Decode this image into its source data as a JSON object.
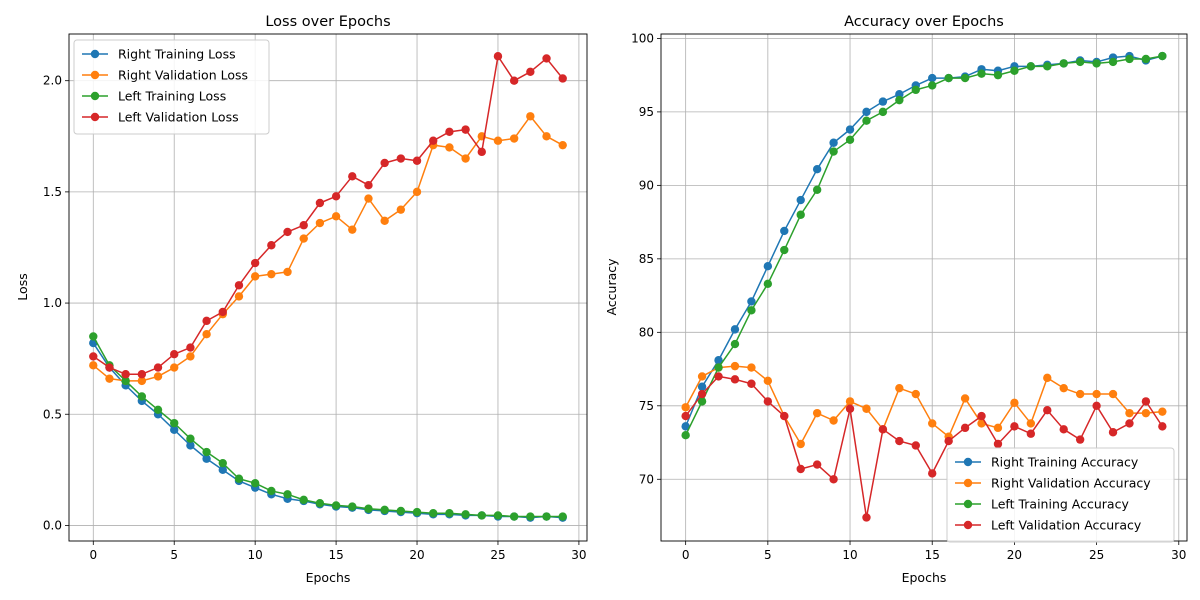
{
  "chart_data": [
    {
      "type": "line",
      "title": "Loss over Epochs",
      "xlabel": "Epochs",
      "ylabel": "Loss",
      "xlim": [
        -1.5,
        30.5
      ],
      "ylim": [
        -0.07,
        2.21
      ],
      "xticks": [
        0,
        5,
        10,
        15,
        20,
        25,
        30
      ],
      "yticks": [
        0.0,
        0.5,
        1.0,
        1.5,
        2.0
      ],
      "ytick_decimals": 1,
      "grid": true,
      "legend_position": "top-left",
      "x": [
        0,
        1,
        2,
        3,
        4,
        5,
        6,
        7,
        8,
        9,
        10,
        11,
        12,
        13,
        14,
        15,
        16,
        17,
        18,
        19,
        20,
        21,
        22,
        23,
        24,
        25,
        26,
        27,
        28,
        29
      ],
      "series": [
        {
          "name": "Right Training Loss",
          "color": "#1f77b4",
          "values": [
            0.82,
            0.71,
            0.63,
            0.56,
            0.5,
            0.43,
            0.36,
            0.3,
            0.25,
            0.2,
            0.17,
            0.14,
            0.12,
            0.11,
            0.095,
            0.085,
            0.08,
            0.07,
            0.065,
            0.06,
            0.055,
            0.05,
            0.05,
            0.045,
            0.045,
            0.04,
            0.04,
            0.035,
            0.04,
            0.035
          ]
        },
        {
          "name": "Right Validation Loss",
          "color": "#ff7f0e",
          "values": [
            0.72,
            0.66,
            0.65,
            0.65,
            0.67,
            0.71,
            0.76,
            0.86,
            0.95,
            1.03,
            1.12,
            1.13,
            1.14,
            1.29,
            1.36,
            1.39,
            1.33,
            1.47,
            1.37,
            1.42,
            1.5,
            1.71,
            1.7,
            1.65,
            1.75,
            1.73,
            1.74,
            1.84,
            1.75,
            1.71
          ]
        },
        {
          "name": "Left Training Loss",
          "color": "#2ca02c",
          "values": [
            0.85,
            0.72,
            0.65,
            0.58,
            0.52,
            0.46,
            0.39,
            0.33,
            0.28,
            0.21,
            0.19,
            0.155,
            0.14,
            0.115,
            0.1,
            0.09,
            0.085,
            0.075,
            0.07,
            0.065,
            0.06,
            0.055,
            0.055,
            0.05,
            0.045,
            0.045,
            0.04,
            0.04,
            0.04,
            0.04
          ]
        },
        {
          "name": "Left Validation Loss",
          "color": "#d62728",
          "values": [
            0.76,
            0.71,
            0.68,
            0.68,
            0.71,
            0.77,
            0.8,
            0.92,
            0.96,
            1.08,
            1.18,
            1.26,
            1.32,
            1.35,
            1.45,
            1.48,
            1.57,
            1.53,
            1.63,
            1.65,
            1.64,
            1.73,
            1.77,
            1.78,
            1.68,
            2.11,
            2.0,
            2.04,
            2.1,
            2.01
          ]
        }
      ]
    },
    {
      "type": "line",
      "title": "Accuracy over Epochs",
      "xlabel": "Epochs",
      "ylabel": "Accuracy",
      "xlim": [
        -1.5,
        30.5
      ],
      "ylim": [
        65.8,
        100.3
      ],
      "xticks": [
        0,
        5,
        10,
        15,
        20,
        25,
        30
      ],
      "yticks": [
        70,
        75,
        80,
        85,
        90,
        95,
        100
      ],
      "ytick_decimals": 0,
      "grid": true,
      "legend_position": "bottom-right",
      "x": [
        0,
        1,
        2,
        3,
        4,
        5,
        6,
        7,
        8,
        9,
        10,
        11,
        12,
        13,
        14,
        15,
        16,
        17,
        18,
        19,
        20,
        21,
        22,
        23,
        24,
        25,
        26,
        27,
        28,
        29
      ],
      "series": [
        {
          "name": "Right Training Accuracy",
          "color": "#1f77b4",
          "values": [
            73.6,
            76.3,
            78.1,
            80.2,
            82.1,
            84.5,
            86.9,
            89.0,
            91.1,
            92.9,
            93.8,
            95.0,
            95.7,
            96.2,
            96.8,
            97.3,
            97.3,
            97.4,
            97.9,
            97.8,
            98.1,
            98.1,
            98.2,
            98.3,
            98.5,
            98.4,
            98.7,
            98.8,
            98.5,
            98.8
          ]
        },
        {
          "name": "Right Validation Accuracy",
          "color": "#ff7f0e",
          "values": [
            74.9,
            77.0,
            77.6,
            77.7,
            77.6,
            76.7,
            74.3,
            72.4,
            74.5,
            74.0,
            75.3,
            74.8,
            73.4,
            76.2,
            75.8,
            73.8,
            72.9,
            75.5,
            73.8,
            73.5,
            75.2,
            73.8,
            76.9,
            76.2,
            75.8,
            75.8,
            75.8,
            74.5,
            74.5,
            74.6
          ]
        },
        {
          "name": "Left Training Accuracy",
          "color": "#2ca02c",
          "values": [
            73.0,
            75.3,
            77.6,
            79.2,
            81.5,
            83.3,
            85.6,
            88.0,
            89.7,
            92.3,
            93.1,
            94.4,
            95.0,
            95.8,
            96.5,
            96.8,
            97.3,
            97.3,
            97.6,
            97.5,
            97.8,
            98.1,
            98.1,
            98.3,
            98.4,
            98.3,
            98.4,
            98.6,
            98.6,
            98.8
          ]
        },
        {
          "name": "Left Validation Accuracy",
          "color": "#d62728",
          "values": [
            74.3,
            75.8,
            77.0,
            76.8,
            76.5,
            75.3,
            74.3,
            70.7,
            71.0,
            70.0,
            74.8,
            67.4,
            73.4,
            72.6,
            72.3,
            70.4,
            72.6,
            73.5,
            74.3,
            72.4,
            73.6,
            73.1,
            74.7,
            73.4,
            72.7,
            75.0,
            73.2,
            73.8,
            75.3,
            73.6
          ]
        }
      ]
    }
  ]
}
